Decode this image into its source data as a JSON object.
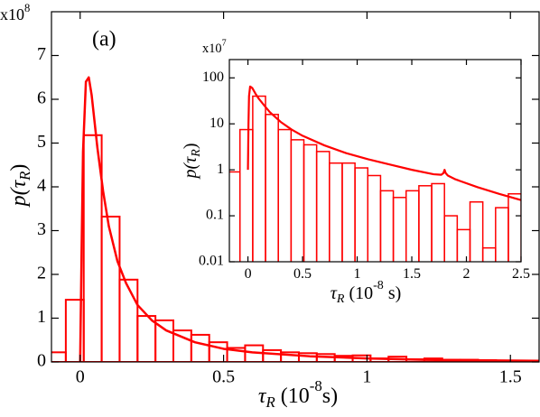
{
  "chart_data": [
    {
      "type": "histogram",
      "color": "#ff0000",
      "annotation": "(a)",
      "multiplier": [
        "x10",
        "8"
      ],
      "xlabel": [
        "τ",
        "R",
        " (10",
        "-8",
        "s)"
      ],
      "ylabel": [
        "p(τ",
        "R",
        ")"
      ],
      "xlim": [
        -0.1,
        1.6
      ],
      "xticks": [
        0,
        0.5,
        1,
        1.5
      ],
      "ylim": [
        0,
        8
      ],
      "yticks": [
        0,
        1,
        2,
        3,
        4,
        5,
        6,
        7
      ],
      "bins": [
        -0.1125,
        -0.05,
        0.0125,
        0.075,
        0.1375,
        0.2,
        0.2625,
        0.325,
        0.3875,
        0.45,
        0.5125,
        0.575,
        0.6375,
        0.7,
        0.7625,
        0.825,
        0.8875,
        0.95,
        1.0125,
        1.075,
        1.1375,
        1.2,
        1.2625,
        1.325,
        1.3875,
        1.45,
        1.5125,
        1.575,
        1.6375
      ],
      "counts": [
        0.22,
        1.42,
        5.18,
        3.32,
        1.88,
        1.05,
        0.95,
        0.72,
        0.62,
        0.45,
        0.32,
        0.38,
        0.27,
        0.22,
        0.2,
        0.18,
        0.14,
        0.15,
        0.08,
        0.12,
        0.06,
        0.08,
        0.05,
        0.05,
        0.04,
        0.03,
        0.03,
        0.02
      ],
      "fit": {
        "x": [
          0,
          0.005,
          0.01,
          0.02,
          0.03,
          0.04,
          0.06,
          0.08,
          0.1,
          0.13,
          0.16,
          0.2,
          0.25,
          0.3,
          0.4,
          0.5,
          0.6,
          0.8,
          1.0,
          1.2,
          1.4,
          1.6
        ],
        "values": [
          0,
          2.5,
          4.8,
          6.4,
          6.5,
          6.1,
          4.9,
          3.9,
          3.1,
          2.3,
          1.8,
          1.3,
          0.95,
          0.72,
          0.45,
          0.3,
          0.22,
          0.13,
          0.08,
          0.05,
          0.035,
          0.025
        ]
      }
    },
    {
      "type": "histogram",
      "color": "#ff0000",
      "log_y": true,
      "multiplier": [
        "x10",
        "7"
      ],
      "xlabel": [
        "τ",
        "R",
        " (10",
        "-8",
        " s)"
      ],
      "ylabel": [
        "p(τ",
        "R",
        ")"
      ],
      "xlim": [
        -0.17,
        2.5
      ],
      "xticks": [
        0,
        0.5,
        1,
        1.5,
        2,
        2.5
      ],
      "ylim": [
        0.01,
        250
      ],
      "yticks": [
        0.01,
        0.1,
        1,
        10,
        100
      ],
      "bins": [
        -0.19,
        -0.073,
        0.044,
        0.161,
        0.278,
        0.395,
        0.512,
        0.629,
        0.746,
        0.863,
        0.98,
        1.097,
        1.214,
        1.331,
        1.448,
        1.565,
        1.682,
        1.799,
        1.916,
        2.033,
        2.15,
        2.267,
        2.384,
        2.501
      ],
      "counts": [
        0.9,
        7.5,
        40,
        16,
        7.5,
        4.5,
        3.5,
        2.5,
        1.4,
        1.4,
        1.1,
        0.75,
        0.35,
        0.25,
        0.35,
        0.45,
        0.5,
        0.1,
        0.05,
        0.2,
        0.02,
        0.15,
        0.3
      ],
      "fit": {
        "x": [
          0,
          0.005,
          0.01,
          0.02,
          0.04,
          0.07,
          0.1,
          0.15,
          0.2,
          0.3,
          0.4,
          0.5,
          0.7,
          0.9,
          1.1,
          1.3,
          1.5,
          1.7,
          1.77,
          1.79,
          1.8,
          1.81,
          1.83,
          1.9,
          2.1,
          2.3,
          2.5
        ],
        "values": [
          1,
          10,
          40,
          65,
          60,
          45,
          35,
          25,
          18,
          11,
          7.5,
          5.5,
          3.4,
          2.3,
          1.7,
          1.3,
          1.0,
          0.8,
          0.78,
          0.85,
          1.0,
          0.85,
          0.75,
          0.62,
          0.42,
          0.3,
          0.22
        ]
      }
    }
  ]
}
